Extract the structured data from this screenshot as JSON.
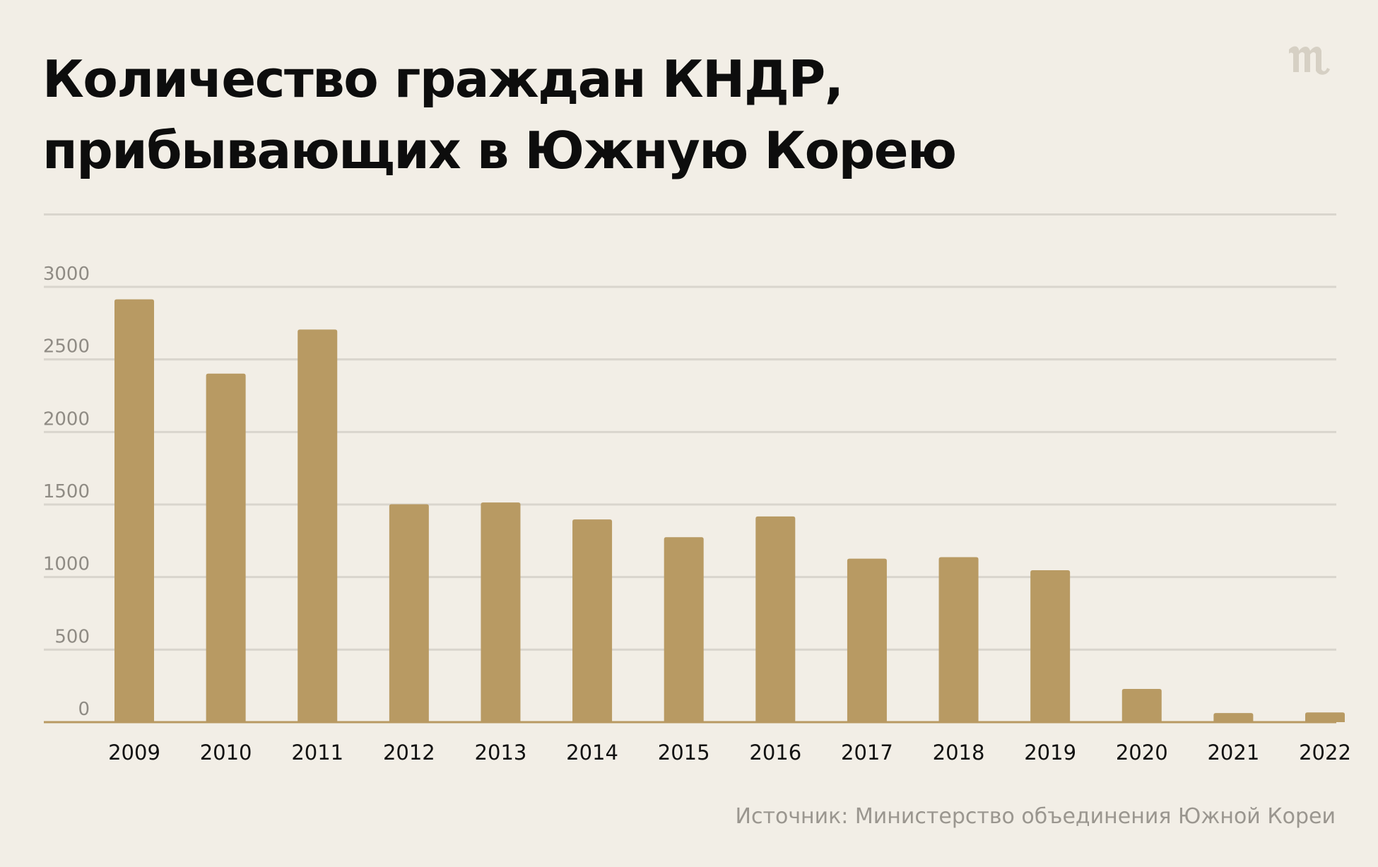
{
  "page": {
    "title_lines": [
      "Количество граждан КНДР,",
      "прибывающих в Южную Корею"
    ],
    "source": "Источник: Министерство объединения Южной Кореи",
    "logo_alt": "meduza-logo"
  },
  "colors": {
    "background": "#f2eee6",
    "bar": "#b89a63",
    "grid": "#d9d5cd",
    "baseline": "#b89a63",
    "tick_label": "#8f8b84",
    "category_label": "#111111",
    "source": "#9a968f",
    "logo": "#d6d0c4"
  },
  "chart_data": {
    "type": "bar",
    "title": "Количество граждан КНДР, прибывающих в Южную Корею",
    "xlabel": "",
    "ylabel": "",
    "categories": [
      "2009",
      "2010",
      "2011",
      "2012",
      "2013",
      "2014",
      "2015",
      "2016",
      "2017",
      "2018",
      "2019",
      "2020",
      "2021",
      "2022"
    ],
    "values": [
      2914,
      2402,
      2706,
      1502,
      1514,
      1397,
      1275,
      1418,
      1127,
      1137,
      1047,
      229,
      63,
      67
    ],
    "ylim": [
      0,
      3000
    ],
    "yticks": [
      0,
      500,
      1000,
      1500,
      2000,
      2500,
      3000
    ],
    "ytick_labels": [
      "0",
      "500",
      "1000",
      "1500",
      "2000",
      "2500",
      "3000"
    ],
    "grid": true,
    "legend": "none"
  }
}
